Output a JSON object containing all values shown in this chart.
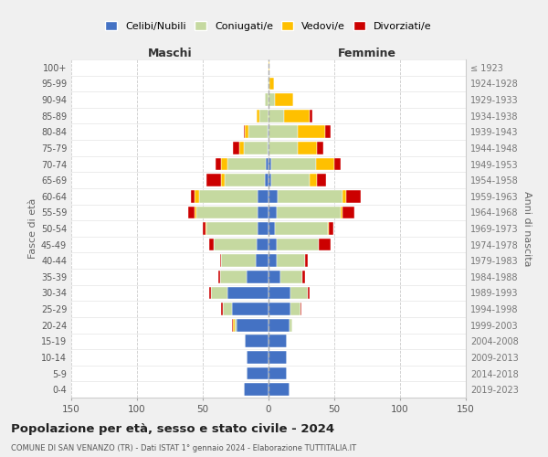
{
  "age_groups": [
    "100+",
    "95-99",
    "90-94",
    "85-89",
    "80-84",
    "75-79",
    "70-74",
    "65-69",
    "60-64",
    "55-59",
    "50-54",
    "45-49",
    "40-44",
    "35-39",
    "30-34",
    "25-29",
    "20-24",
    "15-19",
    "10-14",
    "5-9",
    "0-4"
  ],
  "birth_years": [
    "≤ 1923",
    "1924-1928",
    "1929-1933",
    "1934-1938",
    "1939-1943",
    "1944-1948",
    "1949-1953",
    "1954-1958",
    "1959-1963",
    "1964-1968",
    "1969-1973",
    "1974-1978",
    "1979-1983",
    "1984-1988",
    "1989-1993",
    "1994-1998",
    "1999-2003",
    "2004-2008",
    "2009-2013",
    "2014-2018",
    "2019-2023"
  ],
  "male": {
    "celibi": [
      0,
      0,
      0,
      0,
      1,
      1,
      2,
      3,
      8,
      8,
      8,
      9,
      10,
      17,
      31,
      28,
      24,
      18,
      17,
      17,
      19
    ],
    "coniugati": [
      0,
      1,
      3,
      7,
      14,
      18,
      29,
      30,
      45,
      47,
      39,
      33,
      26,
      20,
      13,
      7,
      2,
      0,
      0,
      0,
      0
    ],
    "vedovi": [
      0,
      0,
      0,
      2,
      3,
      3,
      5,
      3,
      3,
      1,
      1,
      0,
      0,
      0,
      0,
      0,
      1,
      0,
      0,
      0,
      0
    ],
    "divorziati": [
      0,
      0,
      0,
      0,
      1,
      5,
      4,
      11,
      3,
      5,
      2,
      3,
      1,
      1,
      1,
      1,
      1,
      0,
      0,
      0,
      0
    ]
  },
  "female": {
    "nubili": [
      0,
      0,
      0,
      0,
      0,
      0,
      2,
      2,
      7,
      6,
      5,
      6,
      6,
      9,
      17,
      17,
      16,
      14,
      14,
      14,
      16
    ],
    "coniugate": [
      0,
      1,
      5,
      12,
      22,
      22,
      34,
      29,
      49,
      49,
      40,
      32,
      22,
      17,
      13,
      7,
      2,
      0,
      0,
      0,
      0
    ],
    "vedove": [
      1,
      3,
      14,
      19,
      21,
      15,
      14,
      6,
      3,
      1,
      1,
      0,
      0,
      0,
      0,
      0,
      0,
      0,
      0,
      0,
      0
    ],
    "divorziate": [
      0,
      0,
      0,
      2,
      4,
      5,
      5,
      7,
      11,
      9,
      3,
      9,
      2,
      2,
      1,
      1,
      0,
      0,
      0,
      0,
      0
    ]
  },
  "colors": {
    "celibi": "#4472c4",
    "coniugati": "#c5d9a0",
    "vedovi": "#ffc000",
    "divorziati": "#cc0000"
  },
  "xlim": 150,
  "title": "Popolazione per età, sesso e stato civile - 2024",
  "subtitle": "COMUNE DI SAN VENANZO (TR) - Dati ISTAT 1° gennaio 2024 - Elaborazione TUTTITALIA.IT",
  "xlabel_left": "Maschi",
  "xlabel_right": "Femmine",
  "ylabel_left": "Fasce di età",
  "ylabel_right": "Anni di nascita",
  "legend_labels": [
    "Celibi/Nubili",
    "Coniugati/e",
    "Vedovi/e",
    "Divorziati/e"
  ],
  "bg_color": "#f0f0f0",
  "plot_bg": "#ffffff"
}
